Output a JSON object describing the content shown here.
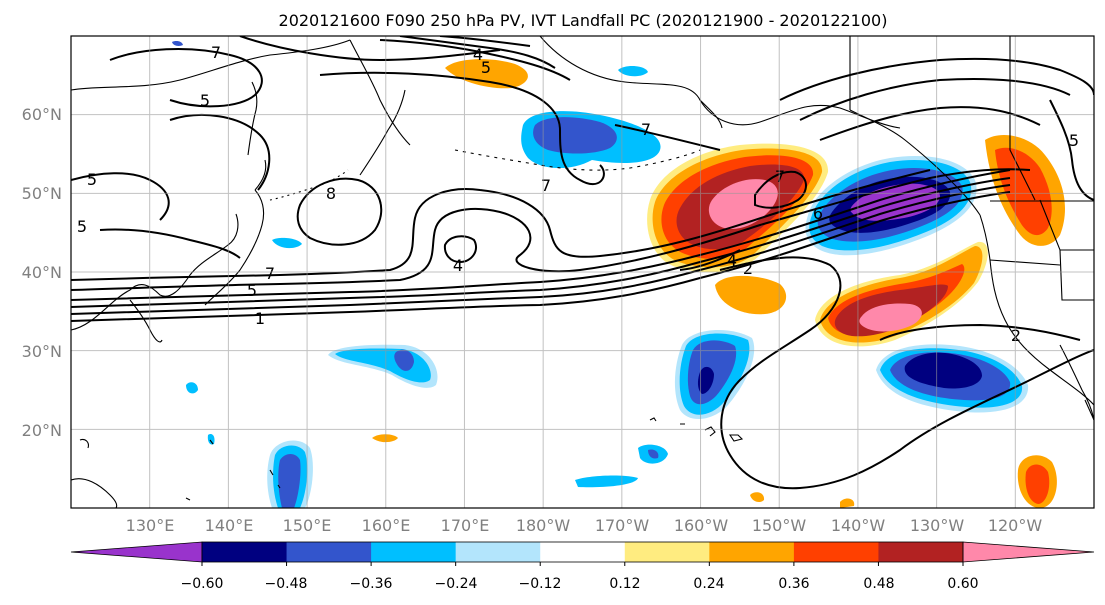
{
  "title": "2020121600 F090 250 hPa PV, IVT Landfall PC (2020121900 - 2020122100)",
  "map": {
    "lon_labels": [
      "130°E",
      "140°E",
      "150°E",
      "160°E",
      "170°E",
      "180°W",
      "170°W",
      "160°W",
      "150°W",
      "140°W",
      "130°W",
      "120°W"
    ],
    "lat_labels": [
      "60°N",
      "50°N",
      "40°N",
      "30°N",
      "20°N"
    ],
    "lon_range": [
      120,
      250
    ],
    "lat_range": [
      10,
      70
    ],
    "grid": true,
    "contour_color": "#000000",
    "coastline_color": "#000000",
    "pv_contour_labels": [
      "7",
      "5",
      "4",
      "5",
      "7",
      "5",
      "5",
      "8",
      "7",
      "4",
      "7",
      "5",
      "1",
      "7",
      "6",
      "4",
      "2",
      "2",
      "5"
    ]
  },
  "colorbar": {
    "tick_labels": [
      "−0.60",
      "−0.48",
      "−0.36",
      "−0.24",
      "−0.12",
      "0.12",
      "0.24",
      "0.36",
      "0.48",
      "0.60"
    ],
    "bins": [
      {
        "color": "#9933cc",
        "range": "< -0.60"
      },
      {
        "color": "#000080",
        "range": "-0.60 to -0.48"
      },
      {
        "color": "#3355cc",
        "range": "-0.48 to -0.36"
      },
      {
        "color": "#00bfff",
        "range": "-0.36 to -0.24"
      },
      {
        "color": "#b3e5fc",
        "range": "-0.24 to -0.12"
      },
      {
        "color": "#ffffff",
        "range": "-0.12 to 0.12"
      },
      {
        "color": "#ffec80",
        "range": "0.12 to 0.24"
      },
      {
        "color": "#ffa500",
        "range": "0.24 to 0.36"
      },
      {
        "color": "#ff4000",
        "range": "0.36 to 0.48"
      },
      {
        "color": "#b22222",
        "range": "0.48 to 0.60"
      },
      {
        "color": "#ff88aa",
        "range": "> 0.60"
      }
    ]
  }
}
